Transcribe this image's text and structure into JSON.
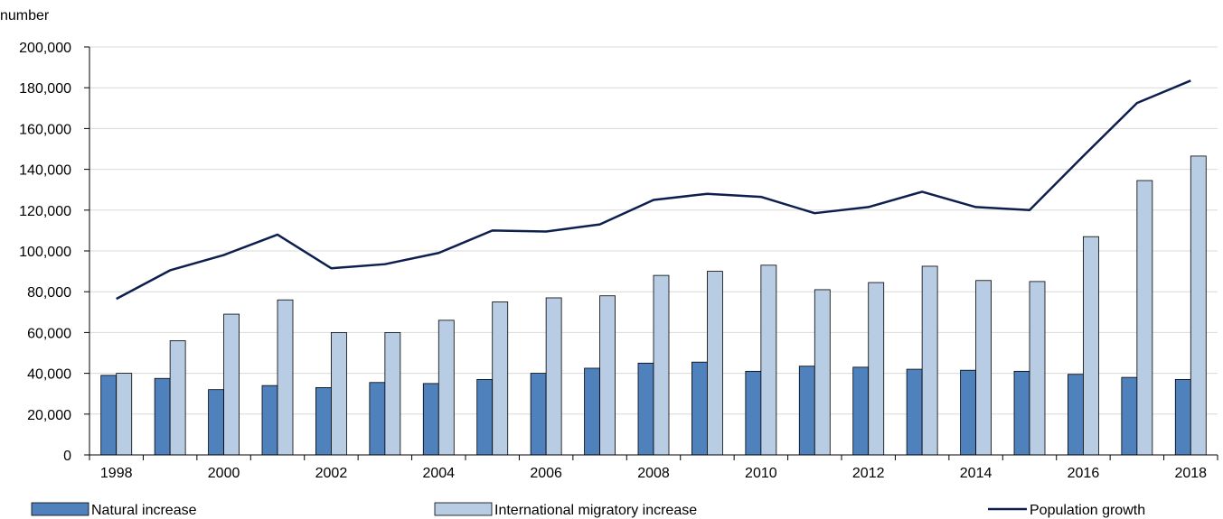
{
  "chart_data": {
    "type": "bar",
    "unit_label": "number",
    "x": [
      1998,
      1999,
      2000,
      2001,
      2002,
      2003,
      2004,
      2005,
      2006,
      2007,
      2008,
      2009,
      2010,
      2011,
      2012,
      2013,
      2014,
      2015,
      2016,
      2017,
      2018
    ],
    "x_tick_labels": [
      "1998",
      "2000",
      "2002",
      "2004",
      "2006",
      "2008",
      "2010",
      "2012",
      "2014",
      "2016",
      "2018"
    ],
    "y_tick_labels": [
      "0",
      "20,000",
      "40,000",
      "60,000",
      "80,000",
      "100,000",
      "120,000",
      "140,000",
      "160,000",
      "180,000",
      "200,000"
    ],
    "ylim": [
      0,
      200000
    ],
    "grid": true,
    "legend_position": "bottom",
    "series": [
      {
        "name": "Natural increase",
        "kind": "bar",
        "color": "#4f81bd",
        "values": [
          39000,
          37500,
          32000,
          34000,
          33000,
          35500,
          35000,
          37000,
          40000,
          42500,
          45000,
          45500,
          41000,
          43500,
          43000,
          42000,
          41500,
          41000,
          39500,
          38000,
          37000
        ]
      },
      {
        "name": "International migratory increase",
        "kind": "bar",
        "color": "#b8cce4",
        "values": [
          40000,
          56000,
          69000,
          76000,
          60000,
          60000,
          66000,
          75000,
          77000,
          78000,
          88000,
          90000,
          93000,
          81000,
          84500,
          92500,
          85500,
          85000,
          107000,
          134500,
          146500
        ]
      },
      {
        "name": "Population growth",
        "kind": "line",
        "color": "#0d1f4f",
        "values": [
          76500,
          90500,
          98000,
          108000,
          91500,
          93500,
          99000,
          110000,
          109500,
          113000,
          125000,
          128000,
          126500,
          118500,
          121500,
          129000,
          121500,
          120000,
          146500,
          172500,
          183500
        ]
      }
    ]
  }
}
